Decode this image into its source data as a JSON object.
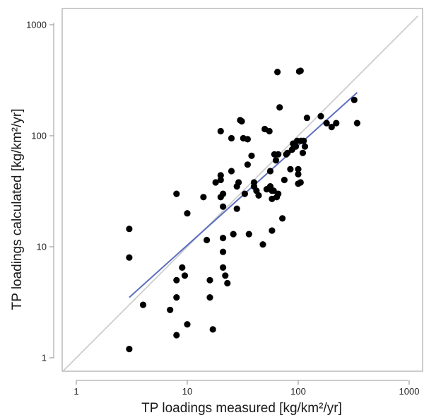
{
  "chart_data": {
    "type": "scatter",
    "xlabel": "TP loadings measured [kg/km²/yr]",
    "ylabel": "TP loadings calculated [kg/km²/yr]",
    "xscale": "log",
    "yscale": "log",
    "xlim": [
      0.6,
      1200
    ],
    "ylim": [
      0.7,
      1300
    ],
    "x_ticks": [
      1,
      10,
      100,
      1000
    ],
    "x_tick_labels": [
      "1",
      "10",
      "100",
      "1000"
    ],
    "y_ticks": [
      1,
      10,
      100,
      1000
    ],
    "y_tick_labels": [
      "1",
      "10",
      "100",
      "1000"
    ],
    "grid": false,
    "legend": "none",
    "colors": {
      "points": "#000000",
      "regression_line": "#5a6fc0",
      "one_to_one_line": "#c8c8c8",
      "frame": "#a9a9a9"
    },
    "series": [
      {
        "marker": "circle",
        "x": [
          3,
          3,
          3,
          4,
          7,
          8,
          8,
          8,
          8,
          9,
          9.5,
          10,
          10,
          14,
          15,
          16,
          16,
          17,
          18,
          20,
          20,
          20,
          20,
          21,
          21,
          21,
          21,
          21,
          22,
          23,
          25,
          25,
          26,
          28,
          28,
          29,
          30,
          31,
          32,
          33,
          35,
          35,
          36,
          38,
          40,
          40,
          42,
          44,
          48,
          50,
          52,
          55,
          56,
          56,
          58,
          58,
          58,
          60,
          61,
          63,
          64,
          65,
          66,
          66,
          68,
          72,
          75,
          78,
          80,
          85,
          88,
          90,
          92,
          95,
          98,
          100,
          100,
          100,
          102,
          105,
          105,
          106,
          110,
          112,
          115,
          120,
          160,
          180,
          200,
          220,
          320,
          340
        ],
        "y": [
          14.5,
          8,
          1.2,
          3,
          2.7,
          30,
          5,
          3.5,
          1.6,
          6.5,
          5.5,
          20,
          2,
          28,
          11.5,
          5,
          3.5,
          1.8,
          38,
          40,
          110,
          28,
          44,
          23,
          6.5,
          9,
          12,
          30,
          5.5,
          4.7,
          95,
          48,
          13,
          22,
          35,
          38,
          138,
          135,
          95,
          30,
          55,
          93,
          13,
          66,
          38,
          35,
          32,
          29,
          10.5,
          115,
          33,
          110,
          48,
          35,
          14,
          27,
          32,
          32,
          68,
          60,
          28,
          375,
          68,
          30,
          180,
          18,
          40,
          68,
          70,
          50,
          75,
          85,
          80,
          80,
          90,
          45,
          50,
          37,
          380,
          38,
          385,
          90,
          70,
          90,
          80,
          145,
          150,
          130,
          120,
          130,
          210,
          130
        ]
      }
    ],
    "regression_line": {
      "x": [
        3,
        340
      ],
      "y": [
        3.5,
        245
      ]
    },
    "one_to_one_line": {
      "x": [
        0.6,
        1200
      ],
      "y": [
        0.6,
        1200
      ]
    }
  }
}
